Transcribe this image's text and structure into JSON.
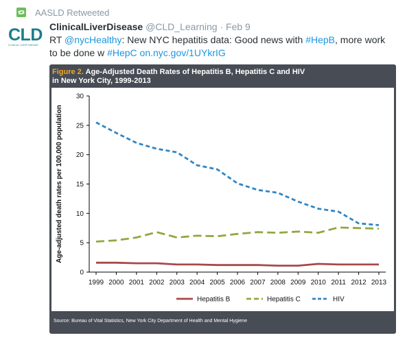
{
  "retweet": {
    "label": "AASLD Retweeted",
    "icon": "retweet-icon"
  },
  "avatar": {
    "logo": "CLD",
    "logo_sub": "CLINICAL LIVER DISEASE"
  },
  "tweet": {
    "name": "ClinicalLiverDisease",
    "handle": "@CLD_Learning",
    "separator": "·",
    "time": "Feb 9",
    "text_parts": [
      {
        "t": "RT ",
        "link": false
      },
      {
        "t": "@nycHealthy",
        "link": true
      },
      {
        "t": ": New NYC hepatitis data: Good news with ",
        "link": false
      },
      {
        "t": "#HepB",
        "link": true
      },
      {
        "t": ",  more work to be done w ",
        "link": false
      },
      {
        "t": "#HepC",
        "link": true
      },
      {
        "t": "  ",
        "link": false
      },
      {
        "t": "on.nyc.gov/1UYkrIG",
        "link": true
      }
    ]
  },
  "figure": {
    "label": "Figure 2.",
    "title_line1": "Age-Adjusted Death Rates of Hepatitis B, Hepatitis C and HIV",
    "title_line2": "in New York City, 1999-2013",
    "source": "Source: Bureau of Vital Statistics, New York City Department of Health and Mental Hygiene"
  },
  "colors": {
    "hepb": "#a8484a",
    "hepc": "#8fa83e",
    "hiv": "#2f86c3",
    "card_bg": "#474c55",
    "figure_label": "#f0a92a",
    "link": "#1b95e0"
  },
  "chart_data": {
    "type": "line",
    "ylabel": "Age-adjusted death rates per 100,000 population",
    "xlabel": "",
    "ylim": [
      0,
      30
    ],
    "yticks": [
      0,
      5,
      10,
      15,
      20,
      25,
      30
    ],
    "x": [
      "1999",
      "2000",
      "2001",
      "2002",
      "2003",
      "2004",
      "2005",
      "2006",
      "2007",
      "2008",
      "2009",
      "2010",
      "2011",
      "2012",
      "2013"
    ],
    "series": [
      {
        "name": "Hepatitis B",
        "key": "hepb",
        "style": "solid",
        "values": [
          1.6,
          1.6,
          1.5,
          1.5,
          1.3,
          1.3,
          1.2,
          1.2,
          1.2,
          1.1,
          1.1,
          1.4,
          1.3,
          1.3,
          1.3
        ]
      },
      {
        "name": "Hepatitis C",
        "key": "hepc",
        "style": "dashed",
        "values": [
          5.2,
          5.4,
          5.9,
          6.8,
          5.9,
          6.2,
          6.1,
          6.5,
          6.8,
          6.7,
          6.9,
          6.7,
          7.6,
          7.5,
          7.4
        ]
      },
      {
        "name": "HIV",
        "key": "hiv",
        "style": "dotted-dash",
        "values": [
          25.5,
          23.7,
          22.0,
          21.0,
          20.4,
          18.2,
          17.5,
          15.1,
          14.0,
          13.5,
          12.0,
          10.8,
          10.3,
          8.3,
          8.0
        ]
      }
    ],
    "legend_position": "bottom-center",
    "grid": false
  }
}
